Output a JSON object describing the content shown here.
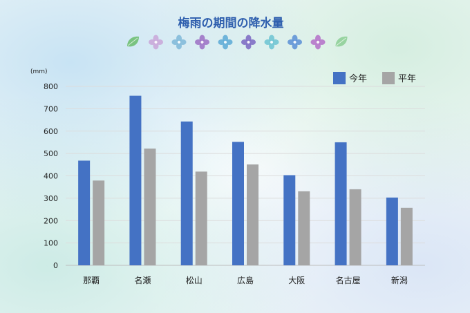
{
  "chart_data": {
    "type": "bar",
    "title": "梅雨の期間の降水量",
    "ylabel": "(mm)",
    "categories": [
      "那覇",
      "名瀬",
      "松山",
      "広島",
      "大阪",
      "名古屋",
      "新潟"
    ],
    "series": [
      {
        "name": "今年",
        "color": "#4472c4",
        "values": [
          468,
          758,
          643,
          552,
          403,
          550,
          303
        ]
      },
      {
        "name": "平年",
        "color": "#a5a5a5",
        "values": [
          379,
          522,
          419,
          451,
          331,
          340,
          257
        ]
      }
    ],
    "ylim": [
      0,
      800
    ],
    "yticks": [
      0,
      100,
      200,
      300,
      400,
      500,
      600,
      700,
      800
    ],
    "grid": true,
    "legend_position": "top-right"
  },
  "decorations": {
    "icons": [
      "leaf-icon",
      "hydrangea-flower-icon",
      "hydrangea-flower-icon",
      "hydrangea-flower-icon",
      "hydrangea-flower-icon",
      "hydrangea-flower-icon",
      "hydrangea-flower-icon",
      "hydrangea-flower-icon",
      "hydrangea-flower-icon",
      "leaf-icon"
    ],
    "colors": [
      "#6fbf73",
      "#c9a6d8",
      "#7fb8d8",
      "#9b6fc4",
      "#5aa9d6",
      "#7a66c2",
      "#6cc3d2",
      "#5b8fd6",
      "#b46fc8",
      "#8fcf98"
    ]
  }
}
